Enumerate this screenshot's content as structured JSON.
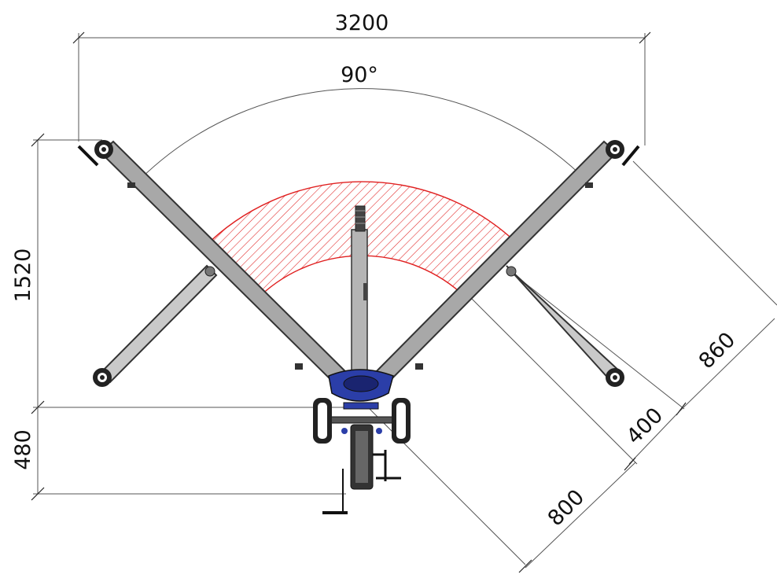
{
  "dimensions": {
    "overall_width": "3200",
    "opening_angle": "90°",
    "depth_front": "1520",
    "depth_rear": "480",
    "leg_length": "860",
    "hatch_width": "400",
    "radius": "800"
  },
  "colors": {
    "frame_blue": "#2b3ea8",
    "hatch_red": "#e02020",
    "leg_gray": "#a8a8a8",
    "dimension_line": "#555555"
  },
  "icons": {
    "wheel": "caster-wheel-icon",
    "crank": "hand-crank-icon"
  }
}
